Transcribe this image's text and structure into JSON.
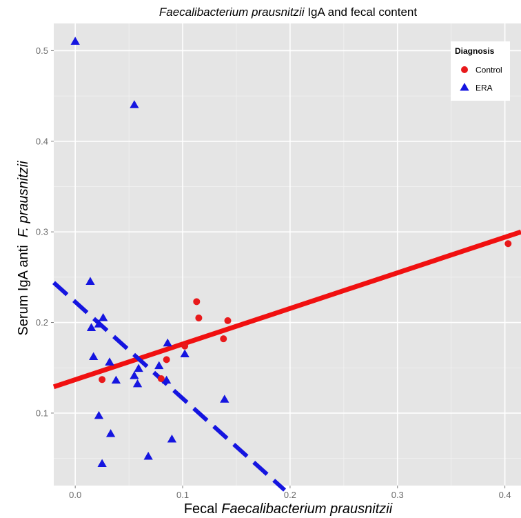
{
  "chart_data": {
    "type": "scatter",
    "title": {
      "italic": "Faecalibacterium prausnitzii",
      "normal": " IgA and fecal content"
    },
    "xlabel": {
      "normal": "Fecal ",
      "italic": "Faecalibacterium prausnitzii"
    },
    "ylabel": {
      "normal": "Serum IgA anti  ",
      "italic": "F. prausnitzii"
    },
    "xlim": [
      -0.02,
      0.415
    ],
    "ylim": [
      0.02,
      0.53
    ],
    "x_ticks": [
      0.0,
      0.1,
      0.2,
      0.3,
      0.4
    ],
    "x_tick_labels": [
      "0.0",
      "0.1",
      "0.2",
      "0.3",
      "0.4"
    ],
    "y_ticks": [
      0.1,
      0.2,
      0.3,
      0.4,
      0.5
    ],
    "y_tick_labels": [
      "0.1",
      "0.2",
      "0.3",
      "0.4",
      "0.5"
    ],
    "grid": true,
    "legend": {
      "title": "Diagnosis",
      "position": "top-right"
    },
    "series": [
      {
        "name": "Control",
        "marker": "circle",
        "color": "#e8191b",
        "x": [
          0.025,
          0.08,
          0.085,
          0.102,
          0.113,
          0.115,
          0.138,
          0.142,
          0.403
        ],
        "y": [
          0.137,
          0.138,
          0.159,
          0.174,
          0.223,
          0.205,
          0.182,
          0.202,
          0.287
        ]
      },
      {
        "name": "ERA",
        "marker": "triangle",
        "color": "#1515e0",
        "x": [
          0.0,
          0.055,
          0.014,
          0.015,
          0.017,
          0.022,
          0.026,
          0.032,
          0.033,
          0.038,
          0.022,
          0.032,
          0.025,
          0.055,
          0.058,
          0.059,
          0.068,
          0.078,
          0.085,
          0.086,
          0.09,
          0.102,
          0.139
        ],
        "y": [
          0.51,
          0.44,
          0.245,
          0.194,
          0.162,
          0.198,
          0.205,
          0.156,
          0.077,
          0.136,
          0.097,
          0.156,
          0.044,
          0.141,
          0.132,
          0.149,
          0.052,
          0.152,
          0.136,
          0.177,
          0.071,
          0.165,
          0.115
        ]
      }
    ],
    "fit_lines": [
      {
        "series": "Control",
        "style": "solid",
        "color": "#f01010",
        "x": [
          -0.02,
          0.415
        ],
        "y": [
          0.129,
          0.3
        ]
      },
      {
        "series": "ERA",
        "style": "dashed",
        "color": "#1515e0",
        "x": [
          -0.02,
          0.195
        ],
        "y": [
          0.244,
          0.015
        ]
      }
    ]
  }
}
